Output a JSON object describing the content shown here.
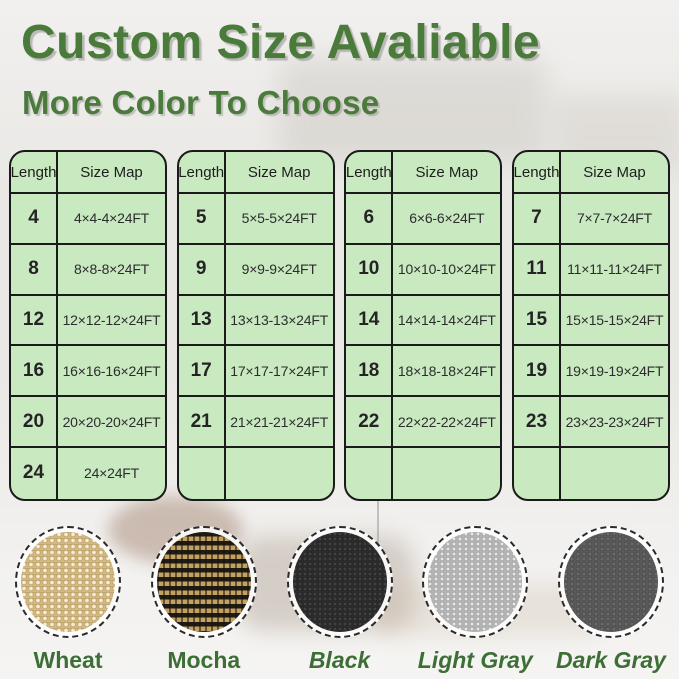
{
  "title": "Custom Size Avaliable",
  "subtitle": "More Color To Choose",
  "tables": [
    {
      "headers": [
        "Length",
        "Size Map"
      ],
      "rows": [
        [
          "4",
          "4×4-4×24FT"
        ],
        [
          "8",
          "8×8-8×24FT"
        ],
        [
          "12",
          "12×12-12×24FT"
        ],
        [
          "16",
          "16×16-16×24FT"
        ],
        [
          "20",
          "20×20-20×24FT"
        ],
        [
          "24",
          "24×24FT"
        ]
      ]
    },
    {
      "headers": [
        "Length",
        "Size Map"
      ],
      "rows": [
        [
          "5",
          "5×5-5×24FT"
        ],
        [
          "9",
          "9×9-9×24FT"
        ],
        [
          "13",
          "13×13-13×24FT"
        ],
        [
          "17",
          "17×17-17×24FT"
        ],
        [
          "21",
          "21×21-21×24FT"
        ],
        [
          "",
          ""
        ]
      ]
    },
    {
      "headers": [
        "Length",
        "Size Map"
      ],
      "rows": [
        [
          "6",
          "6×6-6×24FT"
        ],
        [
          "10",
          "10×10-10×24FT"
        ],
        [
          "14",
          "14×14-14×24FT"
        ],
        [
          "18",
          "18×18-18×24FT"
        ],
        [
          "22",
          "22×22-22×24FT"
        ],
        [
          "",
          ""
        ]
      ]
    },
    {
      "headers": [
        "Length",
        "Size Map"
      ],
      "rows": [
        [
          "7",
          "7×7-7×24FT"
        ],
        [
          "11",
          "11×11-11×24FT"
        ],
        [
          "15",
          "15×15-15×24FT"
        ],
        [
          "19",
          "19×19-19×24FT"
        ],
        [
          "23",
          "23×23-23×24FT"
        ],
        [
          "",
          ""
        ]
      ]
    }
  ],
  "swatches": [
    {
      "name": "Wheat",
      "italic": false,
      "texture": "wheat",
      "base_color": "#d4ba80"
    },
    {
      "name": "Mocha",
      "italic": false,
      "texture": "mocha",
      "base_color": "#c3a160"
    },
    {
      "name": "Black",
      "italic": true,
      "texture": "black",
      "base_color": "#2c2c2c"
    },
    {
      "name": "Light Gray",
      "italic": true,
      "texture": "lightgray",
      "base_color": "#b4b4b4"
    },
    {
      "name": "Dark Gray",
      "italic": true,
      "texture": "darkgray",
      "base_color": "#595959"
    }
  ],
  "colors": {
    "heading_green": "#4a7b3b",
    "label_green": "#3d6e36",
    "table_background": "#c9e9c1",
    "table_border": "#1a1a1a"
  }
}
